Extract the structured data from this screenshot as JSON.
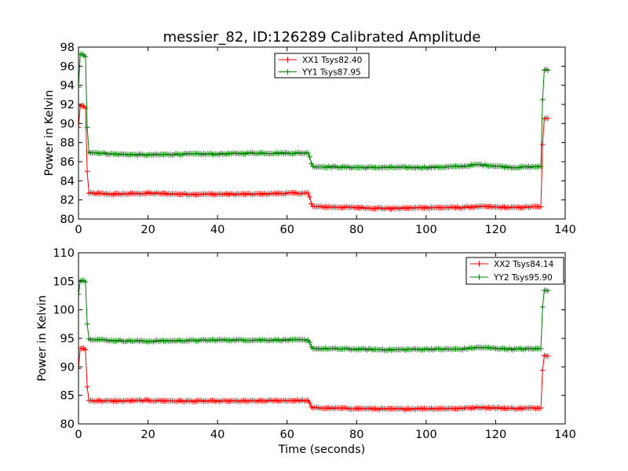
{
  "title": "messier_82, ID:126289 Calibrated Amplitude",
  "chart_data": [
    {
      "type": "line",
      "ylabel": "Power in Kelvin",
      "xlabel": "",
      "xlim": [
        0,
        140
      ],
      "ylim": [
        80,
        98
      ],
      "xticks": [
        0,
        20,
        40,
        60,
        80,
        100,
        120,
        140
      ],
      "yticks": [
        80,
        82,
        84,
        86,
        88,
        90,
        92,
        94,
        96,
        98
      ],
      "legend_position": "upper-center",
      "series": [
        {
          "name": "XX1 Tsys82.40",
          "color": "#ff0000",
          "points": [
            [
              0.0,
              89.6
            ],
            [
              0.5,
              91.8
            ],
            [
              1.0,
              91.9
            ],
            [
              1.5,
              91.8
            ],
            [
              2.0,
              91.6
            ],
            [
              2.5,
              85.0
            ],
            [
              3.0,
              82.7
            ],
            [
              10,
              82.6
            ],
            [
              20,
              82.7
            ],
            [
              30,
              82.6
            ],
            [
              40,
              82.6
            ],
            [
              50,
              82.6
            ],
            [
              60,
              82.7
            ],
            [
              66.0,
              82.7
            ],
            [
              66.5,
              82.3
            ],
            [
              67.0,
              81.6
            ],
            [
              67.5,
              81.3
            ],
            [
              80,
              81.2
            ],
            [
              90,
              81.1
            ],
            [
              100,
              81.2
            ],
            [
              110,
              81.2
            ],
            [
              115,
              81.3
            ],
            [
              125,
              81.2
            ],
            [
              133.0,
              81.3
            ],
            [
              133.5,
              87.8
            ],
            [
              134.0,
              90.5
            ],
            [
              135.0,
              90.5
            ]
          ]
        },
        {
          "name": "YY1 Tsys87.95",
          "color": "#008000",
          "points": [
            [
              0.0,
              93.8
            ],
            [
              0.5,
              97.2
            ],
            [
              1.0,
              97.3
            ],
            [
              1.5,
              97.2
            ],
            [
              2.0,
              97.0
            ],
            [
              2.5,
              89.6
            ],
            [
              3.0,
              87.0
            ],
            [
              10,
              86.8
            ],
            [
              20,
              86.7
            ],
            [
              30,
              86.8
            ],
            [
              40,
              86.8
            ],
            [
              50,
              86.9
            ],
            [
              60,
              86.9
            ],
            [
              66.0,
              86.9
            ],
            [
              66.5,
              86.5
            ],
            [
              67.0,
              85.8
            ],
            [
              67.5,
              85.5
            ],
            [
              80,
              85.4
            ],
            [
              90,
              85.4
            ],
            [
              100,
              85.4
            ],
            [
              110,
              85.5
            ],
            [
              115,
              85.7
            ],
            [
              125,
              85.4
            ],
            [
              133.0,
              85.5
            ],
            [
              133.5,
              92.5
            ],
            [
              134.0,
              95.6
            ],
            [
              135.0,
              95.6
            ]
          ]
        }
      ]
    },
    {
      "type": "line",
      "ylabel": "Power in Kelvin",
      "xlabel": "Time (seconds)",
      "xlim": [
        0,
        140
      ],
      "ylim": [
        80,
        110
      ],
      "xticks": [
        0,
        20,
        40,
        60,
        80,
        100,
        120,
        140
      ],
      "yticks": [
        80,
        85,
        90,
        95,
        100,
        105,
        110
      ],
      "legend_position": "upper-right",
      "series": [
        {
          "name": "XX2 Tsys84.14",
          "color": "#ff0000",
          "points": [
            [
              0.0,
              89.7
            ],
            [
              0.5,
              93.2
            ],
            [
              1.0,
              93.3
            ],
            [
              1.5,
              93.2
            ],
            [
              2.0,
              93.0
            ],
            [
              2.5,
              86.5
            ],
            [
              3.0,
              84.1
            ],
            [
              10,
              84.0
            ],
            [
              20,
              84.1
            ],
            [
              30,
              84.0
            ],
            [
              40,
              84.0
            ],
            [
              50,
              84.0
            ],
            [
              60,
              84.1
            ],
            [
              66.0,
              84.1
            ],
            [
              66.5,
              83.7
            ],
            [
              67.0,
              83.0
            ],
            [
              67.5,
              82.8
            ],
            [
              80,
              82.7
            ],
            [
              90,
              82.6
            ],
            [
              100,
              82.7
            ],
            [
              110,
              82.7
            ],
            [
              115,
              82.9
            ],
            [
              125,
              82.7
            ],
            [
              133.0,
              82.8
            ],
            [
              133.5,
              89.4
            ],
            [
              134.0,
              92.0
            ],
            [
              135.0,
              92.0
            ]
          ]
        },
        {
          "name": "YY2 Tsys95.90",
          "color": "#008000",
          "points": [
            [
              0.0,
              102.7
            ],
            [
              0.5,
              105.1
            ],
            [
              1.0,
              105.2
            ],
            [
              1.5,
              105.1
            ],
            [
              2.0,
              104.9
            ],
            [
              2.5,
              97.5
            ],
            [
              3.0,
              94.9
            ],
            [
              10,
              94.6
            ],
            [
              20,
              94.5
            ],
            [
              30,
              94.6
            ],
            [
              40,
              94.7
            ],
            [
              50,
              94.7
            ],
            [
              60,
              94.7
            ],
            [
              66.0,
              94.7
            ],
            [
              66.5,
              94.3
            ],
            [
              67.0,
              93.5
            ],
            [
              67.5,
              93.2
            ],
            [
              80,
              93.1
            ],
            [
              90,
              93.0
            ],
            [
              100,
              93.1
            ],
            [
              110,
              93.1
            ],
            [
              115,
              93.4
            ],
            [
              125,
              93.1
            ],
            [
              133.0,
              93.2
            ],
            [
              133.5,
              100.5
            ],
            [
              134.0,
              103.4
            ],
            [
              135.0,
              103.4
            ]
          ]
        }
      ]
    }
  ]
}
